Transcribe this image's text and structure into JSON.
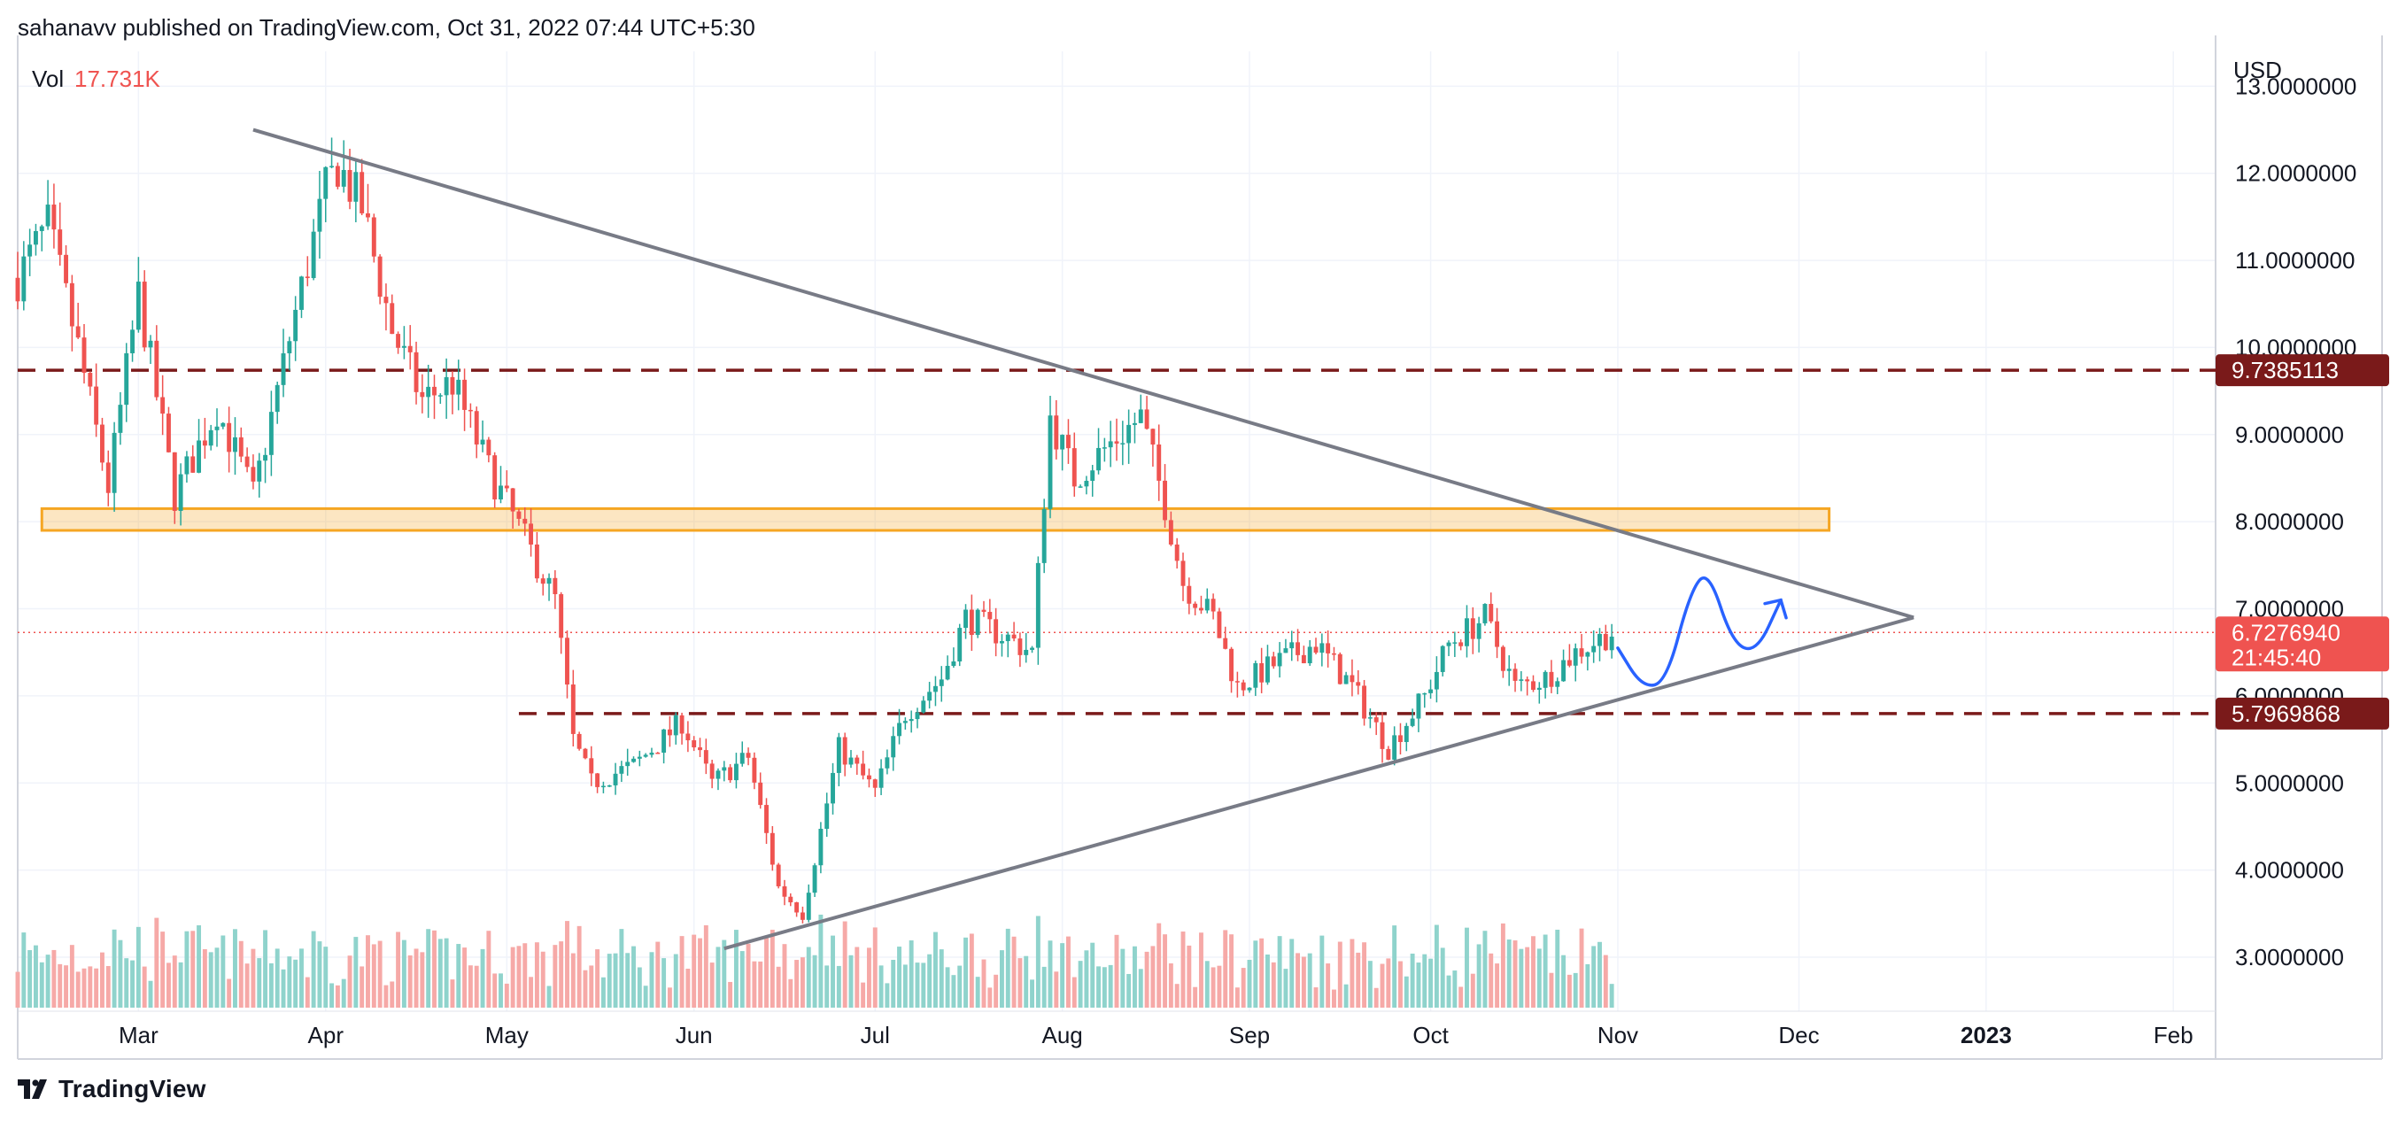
{
  "header": {
    "publisher_line": "sahanavv published on TradingView.com, Oct 31, 2022 07:44 UTC+5:30"
  },
  "footer": {
    "brand": "TradingView"
  },
  "colors": {
    "up": "#26a69a",
    "down": "#ef5350",
    "vol_up": "#8fd3cc",
    "vol_down": "#f6a9a7",
    "level": "#7a1a1a",
    "trendline": "#787b86",
    "zone": "#f5a623",
    "sketch": "#2962ff"
  },
  "chart_data": {
    "type": "candlestick",
    "currency": "USD",
    "volume_label": "Vol",
    "volume_value": "17.731K",
    "ylim": [
      2.4,
      13.4
    ],
    "y_ticks": [
      "3.0000000",
      "4.0000000",
      "5.0000000",
      "6.0000000",
      "7.0000000",
      "8.0000000",
      "9.0000000",
      "10.0000000",
      "11.0000000",
      "12.0000000",
      "13.0000000"
    ],
    "x_ticks": [
      {
        "label": "Mar",
        "date": "2022-03-01"
      },
      {
        "label": "Apr",
        "date": "2022-04-01"
      },
      {
        "label": "May",
        "date": "2022-05-01"
      },
      {
        "label": "Jun",
        "date": "2022-06-01"
      },
      {
        "label": "Jul",
        "date": "2022-07-01"
      },
      {
        "label": "Aug",
        "date": "2022-08-01"
      },
      {
        "label": "Sep",
        "date": "2022-09-01"
      },
      {
        "label": "Oct",
        "date": "2022-10-01"
      },
      {
        "label": "Nov",
        "date": "2022-11-01"
      },
      {
        "label": "Dec",
        "date": "2022-12-01"
      },
      {
        "label": "2023",
        "date": "2023-01-01"
      },
      {
        "label": "Feb",
        "date": "2023-02-01"
      }
    ],
    "xlim": [
      "2022-02-09",
      "2023-02-08"
    ],
    "price_labels": [
      {
        "value": 9.7385113,
        "text": "9.7385113",
        "kind": "level"
      },
      {
        "value": 6.727694,
        "text": "6.7276940",
        "countdown": "21:45:40",
        "kind": "last"
      },
      {
        "value": 5.7969868,
        "text": "5.7969868",
        "kind": "level"
      }
    ],
    "horizontal_levels": [
      {
        "value": 9.7385113,
        "from": "2022-02-09",
        "to": "2023-02-08"
      },
      {
        "value": 5.7969868,
        "from": "2022-05-03",
        "to": "2023-02-08"
      }
    ],
    "zone": {
      "from": "2022-02-13",
      "to": "2022-12-06",
      "low": 7.9,
      "high": 8.15
    },
    "trendlines": [
      {
        "from": {
          "date": "2022-03-20",
          "value": 12.5
        },
        "to": {
          "date": "2022-12-20",
          "value": 6.9
        }
      },
      {
        "from": {
          "date": "2022-06-06",
          "value": 3.1
        },
        "to": {
          "date": "2022-12-20",
          "value": 6.9
        }
      }
    ],
    "sketch_points": [
      {
        "date": "2022-11-01",
        "value": 6.55
      },
      {
        "date": "2022-11-05",
        "value": 6.1
      },
      {
        "date": "2022-11-09",
        "value": 6.15
      },
      {
        "date": "2022-11-13",
        "value": 7.2
      },
      {
        "date": "2022-11-16",
        "value": 7.45
      },
      {
        "date": "2022-11-20",
        "value": 6.6
      },
      {
        "date": "2022-11-24",
        "value": 6.5
      },
      {
        "date": "2022-11-28",
        "value": 7.1
      }
    ],
    "anchors": [
      [
        "2022-02-09",
        10.8
      ],
      [
        "2022-02-14",
        11.4
      ],
      [
        "2022-02-19",
        10.0
      ],
      [
        "2022-02-24",
        8.4
      ],
      [
        "2022-03-01",
        10.6
      ],
      [
        "2022-03-07",
        8.3
      ],
      [
        "2022-03-14",
        9.3
      ],
      [
        "2022-03-20",
        8.3
      ],
      [
        "2022-03-27",
        10.4
      ],
      [
        "2022-04-01",
        11.8
      ],
      [
        "2022-04-03",
        12.1
      ],
      [
        "2022-04-07",
        11.6
      ],
      [
        "2022-04-12",
        10.2
      ],
      [
        "2022-04-17",
        9.4
      ],
      [
        "2022-04-22",
        9.6
      ],
      [
        "2022-04-28",
        8.6
      ],
      [
        "2022-05-04",
        7.8
      ],
      [
        "2022-05-09",
        7.1
      ],
      [
        "2022-05-12",
        5.5
      ],
      [
        "2022-05-15",
        5.0
      ],
      [
        "2022-05-22",
        5.2
      ],
      [
        "2022-05-30",
        5.7
      ],
      [
        "2022-06-04",
        5.0
      ],
      [
        "2022-06-10",
        5.3
      ],
      [
        "2022-06-15",
        3.8
      ],
      [
        "2022-06-19",
        3.5
      ],
      [
        "2022-06-25",
        5.4
      ],
      [
        "2022-07-01",
        4.9
      ],
      [
        "2022-07-06",
        5.8
      ],
      [
        "2022-07-12",
        6.2
      ],
      [
        "2022-07-16",
        6.9
      ],
      [
        "2022-07-22",
        6.7
      ],
      [
        "2022-07-27",
        6.5
      ],
      [
        "2022-07-30",
        9.2
      ],
      [
        "2022-08-03",
        8.5
      ],
      [
        "2022-08-09",
        8.9
      ],
      [
        "2022-08-14",
        9.2
      ],
      [
        "2022-08-18",
        8.2
      ],
      [
        "2022-08-21",
        7.3
      ],
      [
        "2022-08-26",
        6.9
      ],
      [
        "2022-08-30",
        6.1
      ],
      [
        "2022-09-06",
        6.4
      ],
      [
        "2022-09-12",
        6.6
      ],
      [
        "2022-09-18",
        6.1
      ],
      [
        "2022-09-24",
        5.4
      ],
      [
        "2022-09-30",
        6.0
      ],
      [
        "2022-10-04",
        6.6
      ],
      [
        "2022-10-10",
        6.9
      ],
      [
        "2022-10-15",
        6.1
      ],
      [
        "2022-10-20",
        6.2
      ],
      [
        "2022-10-25",
        6.5
      ],
      [
        "2022-10-31",
        6.73
      ]
    ]
  }
}
